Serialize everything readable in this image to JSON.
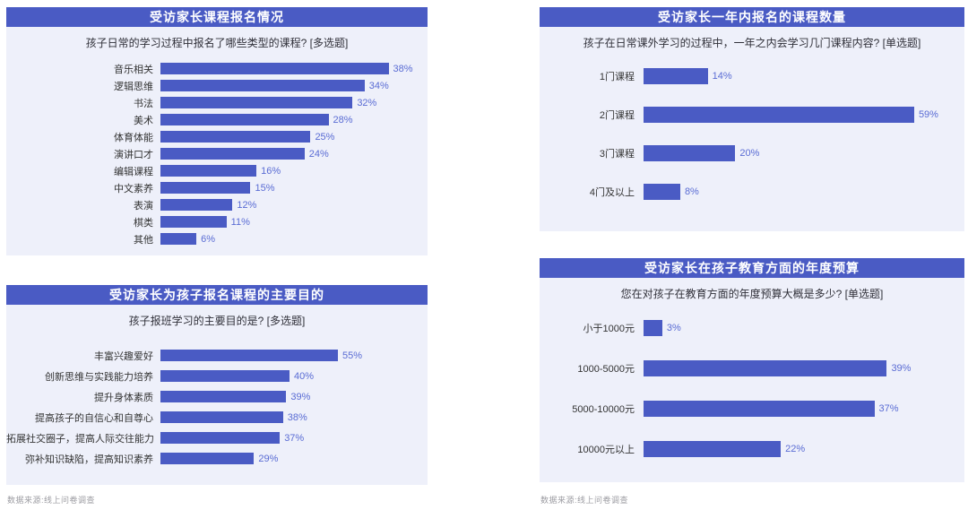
{
  "page": {
    "background": "#ffffff",
    "accent": "#4a5bc4",
    "panel_background": "#eef0fa",
    "header_text_color": "#ffffff",
    "value_text_color": "#5a6cd4",
    "category_text_color": "#333333",
    "subtitle_text_color": "#2f2f38",
    "source_text_color": "#9b9ba1"
  },
  "chart_data": [
    {
      "id": "course-types",
      "type": "bar",
      "orientation": "horizontal",
      "title": "受访家长课程报名情况",
      "subtitle": "孩子日常的学习过程中报名了哪些类型的课程? [多选题]",
      "categories": [
        "音乐相关",
        "逻辑思维",
        "书法",
        "美术",
        "体育体能",
        "演讲口才",
        "编辑课程",
        "中文素养",
        "表演",
        "棋类",
        "其他"
      ],
      "values": [
        38,
        34,
        32,
        28,
        25,
        24,
        16,
        15,
        12,
        11,
        6
      ],
      "value_labels": [
        "38%",
        "34%",
        "32%",
        "28%",
        "25%",
        "24%",
        "16%",
        "15%",
        "12%",
        "11%",
        "6%"
      ],
      "unit": "%",
      "xlim": [
        0,
        43
      ],
      "grid": false,
      "legend": false
    },
    {
      "id": "course-count",
      "type": "bar",
      "orientation": "horizontal",
      "title": "受访家长一年内报名的课程数量",
      "subtitle": "孩子在日常课外学习的过程中，一年之内会学习几门课程内容? [单选题]",
      "categories": [
        "1门课程",
        "2门课程",
        "3门课程",
        "4门及以上"
      ],
      "values": [
        14,
        59,
        20,
        8
      ],
      "value_labels": [
        "14%",
        "59%",
        "20%",
        "8%"
      ],
      "unit": "%",
      "xlim": [
        0,
        68
      ],
      "grid": false,
      "legend": false
    },
    {
      "id": "enrollment-purpose",
      "type": "bar",
      "orientation": "horizontal",
      "title": "受访家长为孩子报名课程的主要目的",
      "subtitle": "孩子报班学习的主要目的是? [多选题]",
      "categories": [
        "丰富兴趣爱好",
        "创新思维与实践能力培养",
        "提升身体素质",
        "提高孩子的自信心和自尊心",
        "拓展社交圈子，提高人际交往能力",
        "弥补知识缺陷，提高知识素养"
      ],
      "values": [
        55,
        40,
        39,
        38,
        37,
        29
      ],
      "value_labels": [
        "55%",
        "40%",
        "39%",
        "38%",
        "37%",
        "29%"
      ],
      "unit": "%",
      "xlim": [
        0,
        80
      ],
      "grid": false,
      "legend": false
    },
    {
      "id": "annual-budget",
      "type": "bar",
      "orientation": "horizontal",
      "title": "受访家长在孩子教育方面的年度预算",
      "subtitle": "您在对孩子在教育方面的年度预算大概是多少? [单选题]",
      "categories": [
        "小于1000元",
        "1000-5000元",
        "5000-10000元",
        "10000元以上"
      ],
      "values": [
        3,
        39,
        37,
        22
      ],
      "value_labels": [
        "3%",
        "39%",
        "37%",
        "22%"
      ],
      "unit": "%",
      "xlim": [
        0,
        50
      ],
      "grid": false,
      "legend": false
    }
  ],
  "footers": [
    {
      "text": "数据来源:线上问卷调查"
    },
    {
      "text": "数据来源:线上问卷调查"
    }
  ]
}
